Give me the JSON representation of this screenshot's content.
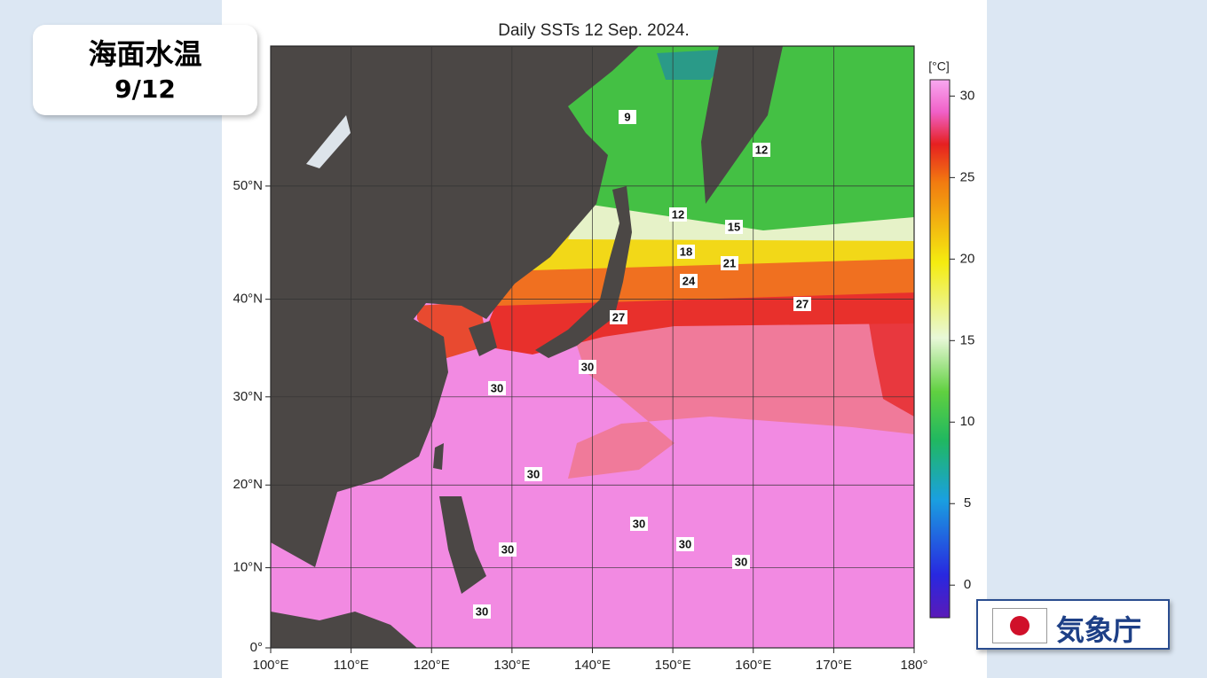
{
  "header": {
    "title": "海面水温",
    "date": "9/12"
  },
  "chart_data": {
    "type": "map",
    "title": "Daily SSTs 12 Sep. 2024.",
    "projection": "mercator",
    "xlim": [
      100,
      180
    ],
    "xticks": [
      {
        "value": 100,
        "label": "100°E"
      },
      {
        "value": 110,
        "label": "110°E"
      },
      {
        "value": 120,
        "label": "120°E"
      },
      {
        "value": 130,
        "label": "130°E"
      },
      {
        "value": 140,
        "label": "140°E"
      },
      {
        "value": 150,
        "label": "150°E"
      },
      {
        "value": 160,
        "label": "160°E"
      },
      {
        "value": 170,
        "label": "170°E"
      },
      {
        "value": 180,
        "label": "180°"
      }
    ],
    "ylim": [
      0,
      60
    ],
    "yticks": [
      {
        "value": 0,
        "label": "0°"
      },
      {
        "value": 10,
        "label": "10°N"
      },
      {
        "value": 20,
        "label": "20°N"
      },
      {
        "value": 30,
        "label": "30°N"
      },
      {
        "value": 40,
        "label": "40°N"
      },
      {
        "value": 50,
        "label": "50°N"
      }
    ],
    "colorbar": {
      "unit": "[°C]",
      "lim": [
        -2,
        31
      ],
      "ticks": [
        0,
        5,
        10,
        15,
        20,
        25,
        30
      ]
    },
    "contour_labels": [
      9,
      12,
      12,
      15,
      18,
      21,
      24,
      27,
      27,
      30,
      30,
      30,
      30,
      30,
      30,
      30,
      30
    ]
  },
  "logo": {
    "text": "気象庁"
  }
}
